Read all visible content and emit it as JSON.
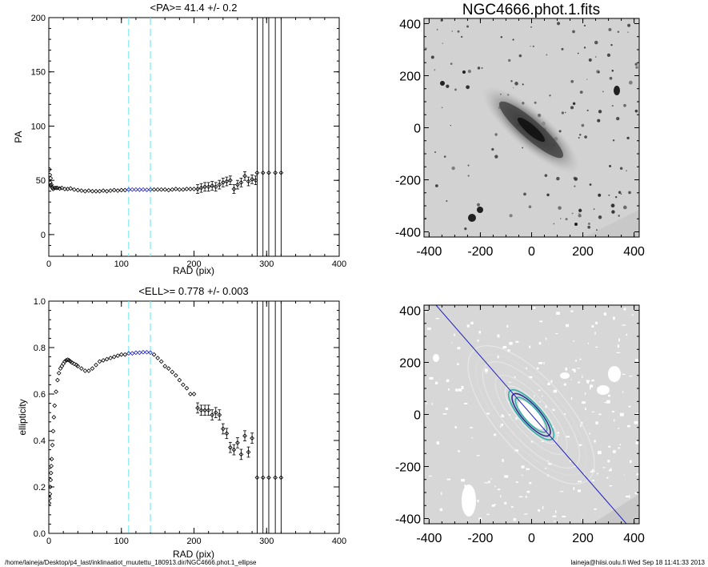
{
  "chart_data": [
    {
      "type": "scatter",
      "title": "<PA>=  41.4 +/-   0.2",
      "xlabel": "RAD (pix)",
      "ylabel": "PA",
      "xlim": [
        0,
        400
      ],
      "ylim": [
        -20,
        200
      ],
      "xticks": [
        "0",
        "100",
        "200",
        "300",
        "400"
      ],
      "yticks": [
        "0",
        "50",
        "100",
        "150",
        "200"
      ],
      "ref_vlines": [
        110,
        140
      ],
      "bound_vlines": [
        287,
        295,
        303,
        312,
        320
      ],
      "series": [
        {
          "values": [
            [
              1,
              60
            ],
            [
              1.5,
              55
            ],
            [
              2,
              48
            ],
            [
              2.5,
              52
            ],
            [
              3,
              45
            ],
            [
              3.5,
              46
            ],
            [
              4,
              44
            ],
            [
              5,
              43
            ],
            [
              6,
              42
            ],
            [
              8,
              43
            ],
            [
              10,
              43
            ],
            [
              12,
              43
            ],
            [
              15,
              42.5
            ],
            [
              18,
              43
            ],
            [
              22,
              42
            ],
            [
              26,
              42
            ],
            [
              30,
              42.5
            ],
            [
              35,
              41.5
            ],
            [
              40,
              41
            ],
            [
              45,
              40.5
            ],
            [
              50,
              40
            ],
            [
              55,
              40.5
            ],
            [
              60,
              40
            ],
            [
              65,
              40
            ],
            [
              70,
              40
            ],
            [
              75,
              40.5
            ],
            [
              80,
              40
            ],
            [
              85,
              40.5
            ],
            [
              90,
              41
            ],
            [
              95,
              40.5
            ],
            [
              100,
              41
            ],
            [
              105,
              41
            ],
            [
              110,
              41.5
            ],
            [
              115,
              41.5
            ],
            [
              120,
              41.5
            ],
            [
              125,
              41.4
            ],
            [
              130,
              41.5
            ],
            [
              135,
              41.3
            ],
            [
              140,
              41.5
            ],
            [
              145,
              41.5
            ],
            [
              150,
              41.5
            ],
            [
              155,
              41.5
            ],
            [
              160,
              41.5
            ],
            [
              165,
              41
            ],
            [
              170,
              41.5
            ],
            [
              175,
              42
            ],
            [
              180,
              41.5
            ],
            [
              185,
              41.5
            ],
            [
              190,
              42
            ],
            [
              195,
              42
            ],
            [
              200,
              42
            ],
            [
              205,
              42
            ],
            [
              210,
              43
            ],
            [
              215,
              44
            ],
            [
              220,
              44
            ],
            [
              225,
              45
            ],
            [
              230,
              44
            ],
            [
              235,
              46
            ],
            [
              240,
              48
            ],
            [
              245,
              49
            ],
            [
              250,
              50
            ],
            [
              255,
              42
            ],
            [
              260,
              46
            ],
            [
              265,
              48
            ],
            [
              270,
              54
            ],
            [
              275,
              49
            ],
            [
              280,
              51
            ],
            [
              285,
              50
            ]
          ]
        },
        {
          "values": [
            [
              287,
              57
            ],
            [
              295,
              57
            ],
            [
              303,
              57
            ],
            [
              312,
              57
            ],
            [
              320,
              57
            ]
          ]
        }
      ]
    },
    {
      "type": "scatter",
      "title": "<ELL>= 0.778 +/-  0.003",
      "xlabel": "RAD (pix)",
      "ylabel": "ellipticity",
      "xlim": [
        0,
        400
      ],
      "ylim": [
        0.0,
        1.0
      ],
      "xticks": [
        "0",
        "100",
        "200",
        "300",
        "400"
      ],
      "yticks": [
        "0.0",
        "0.2",
        "0.4",
        "0.6",
        "0.8",
        "1.0"
      ],
      "ref_vlines": [
        110,
        140
      ],
      "bound_vlines": [
        287,
        295,
        303,
        312,
        320
      ],
      "series": [
        {
          "values": [
            [
              0.5,
              0.13
            ],
            [
              1,
              0.15
            ],
            [
              1.5,
              0.17
            ],
            [
              2,
              0.2
            ],
            [
              2.5,
              0.23
            ],
            [
              3,
              0.26
            ],
            [
              3.5,
              0.29
            ],
            [
              4,
              0.32
            ],
            [
              5,
              0.38
            ],
            [
              6,
              0.44
            ],
            [
              7,
              0.5
            ],
            [
              8,
              0.55
            ],
            [
              10,
              0.61
            ],
            [
              12,
              0.66
            ],
            [
              14,
              0.69
            ],
            [
              16,
              0.71
            ],
            [
              18,
              0.72
            ],
            [
              20,
              0.73
            ],
            [
              22,
              0.74
            ],
            [
              24,
              0.745
            ],
            [
              26,
              0.748
            ],
            [
              28,
              0.745
            ],
            [
              30,
              0.74
            ],
            [
              32,
              0.735
            ],
            [
              35,
              0.73
            ],
            [
              38,
              0.725
            ],
            [
              40,
              0.72
            ],
            [
              45,
              0.71
            ],
            [
              50,
              0.7
            ],
            [
              55,
              0.7
            ],
            [
              60,
              0.71
            ],
            [
              65,
              0.725
            ],
            [
              70,
              0.74
            ],
            [
              75,
              0.745
            ],
            [
              80,
              0.75
            ],
            [
              85,
              0.755
            ],
            [
              90,
              0.76
            ],
            [
              95,
              0.765
            ],
            [
              100,
              0.77
            ],
            [
              105,
              0.77
            ],
            [
              110,
              0.775
            ],
            [
              115,
              0.775
            ],
            [
              120,
              0.778
            ],
            [
              125,
              0.778
            ],
            [
              130,
              0.78
            ],
            [
              135,
              0.78
            ],
            [
              140,
              0.778
            ],
            [
              145,
              0.77
            ],
            [
              150,
              0.755
            ],
            [
              155,
              0.74
            ],
            [
              160,
              0.72
            ],
            [
              165,
              0.71
            ],
            [
              170,
              0.695
            ],
            [
              175,
              0.68
            ],
            [
              180,
              0.66
            ],
            [
              185,
              0.64
            ],
            [
              190,
              0.625
            ],
            [
              195,
              0.6
            ],
            [
              200,
              0.6
            ],
            [
              205,
              0.54
            ],
            [
              210,
              0.53
            ],
            [
              215,
              0.53
            ],
            [
              220,
              0.53
            ],
            [
              225,
              0.51
            ],
            [
              230,
              0.52
            ],
            [
              235,
              0.51
            ],
            [
              240,
              0.45
            ],
            [
              245,
              0.43
            ],
            [
              250,
              0.37
            ],
            [
              255,
              0.36
            ],
            [
              260,
              0.39
            ],
            [
              265,
              0.34
            ],
            [
              270,
              0.42
            ],
            [
              275,
              0.35
            ],
            [
              280,
              0.41
            ]
          ]
        },
        {
          "values": [
            [
              287,
              0.24
            ],
            [
              295,
              0.24
            ],
            [
              303,
              0.24
            ],
            [
              312,
              0.24
            ],
            [
              320,
              0.24
            ]
          ]
        }
      ]
    }
  ],
  "images": {
    "top": {
      "title": "NGC4666.phot.1.fits",
      "xticks": [
        "-400",
        "-200",
        "0",
        "200",
        "400"
      ],
      "yticks": [
        "400",
        "200",
        "0",
        "-200",
        "-400"
      ]
    },
    "bottom": {
      "xticks": [
        "-400",
        "-200",
        "0",
        "200",
        "400"
      ],
      "yticks": [
        "400",
        "200",
        "0",
        "-200",
        "-400"
      ]
    }
  },
  "footer": {
    "path": "/home/laineja/Desktop/p4_last/inklinaatiot_muutettu_180913.dir/NGC4666.phot.1_ellipse",
    "stamp": "laineja@hiisi.oulu.fi  Wed Sep 18 11:41:33 2013"
  },
  "colors": {
    "ref_line": "#7fe6f0",
    "highlight": "#2020c0",
    "contour_teal": "#30b0a8",
    "axis_line": "#2020c0"
  }
}
